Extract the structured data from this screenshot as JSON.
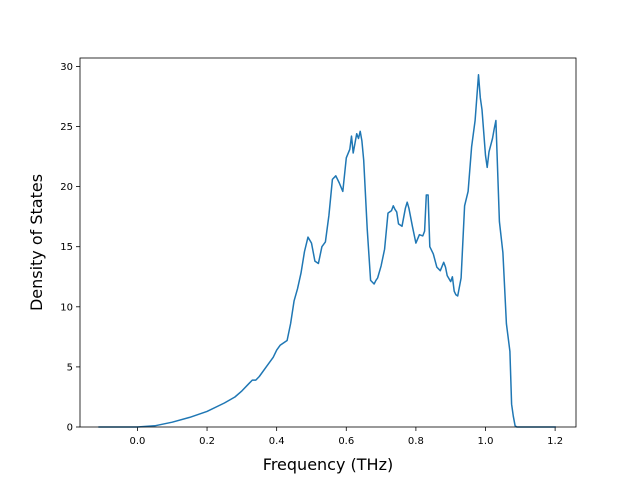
{
  "chart_data": {
    "type": "line",
    "title": "",
    "xlabel": "Frequency (THz)",
    "ylabel": "Density of States",
    "xlim": [
      -0.165,
      1.26
    ],
    "ylim": [
      0,
      30.7
    ],
    "xticks": [
      0.0,
      0.2,
      0.4,
      0.6,
      0.8,
      1.0,
      1.2
    ],
    "xtick_labels": [
      "0.0",
      "0.2",
      "0.4",
      "0.6",
      "0.8",
      "1.0",
      "1.2"
    ],
    "yticks": [
      0,
      5,
      10,
      15,
      20,
      25,
      30
    ],
    "ytick_labels": [
      "0",
      "5",
      "10",
      "15",
      "20",
      "25",
      "30"
    ],
    "grid": false,
    "legend": "none",
    "series": [
      {
        "color": "#1f77b4",
        "x": [
          -0.11,
          -0.05,
          0.0,
          0.05,
          0.1,
          0.15,
          0.2,
          0.25,
          0.28,
          0.3,
          0.32,
          0.33,
          0.34,
          0.35,
          0.37,
          0.39,
          0.4,
          0.41,
          0.43,
          0.44,
          0.45,
          0.46,
          0.47,
          0.48,
          0.49,
          0.5,
          0.51,
          0.52,
          0.53,
          0.54,
          0.55,
          0.56,
          0.57,
          0.58,
          0.59,
          0.6,
          0.61,
          0.615,
          0.62,
          0.63,
          0.635,
          0.64,
          0.645,
          0.65,
          0.66,
          0.67,
          0.68,
          0.685,
          0.69,
          0.7,
          0.71,
          0.72,
          0.73,
          0.735,
          0.74,
          0.745,
          0.75,
          0.76,
          0.77,
          0.775,
          0.78,
          0.79,
          0.8,
          0.81,
          0.82,
          0.825,
          0.83,
          0.835,
          0.84,
          0.85,
          0.86,
          0.87,
          0.88,
          0.885,
          0.89,
          0.9,
          0.905,
          0.91,
          0.915,
          0.92,
          0.93,
          0.94,
          0.95,
          0.96,
          0.97,
          0.98,
          0.985,
          0.99,
          1.0,
          1.005,
          1.01,
          1.02,
          1.025,
          1.03,
          1.04,
          1.05,
          1.06,
          1.07,
          1.075,
          1.08,
          1.085,
          1.09,
          1.1,
          1.15,
          1.2
        ],
        "y": [
          0.0,
          0.0,
          0.0,
          0.1,
          0.4,
          0.8,
          1.3,
          2.0,
          2.5,
          3.0,
          3.6,
          3.9,
          3.9,
          4.2,
          5.0,
          5.8,
          6.4,
          6.8,
          7.2,
          8.6,
          10.5,
          11.5,
          12.8,
          14.6,
          15.8,
          15.3,
          13.8,
          13.6,
          15.0,
          15.4,
          17.6,
          20.6,
          20.9,
          20.3,
          19.6,
          22.4,
          23.1,
          24.2,
          22.8,
          24.4,
          24.0,
          24.6,
          23.8,
          22.2,
          16.5,
          12.2,
          11.9,
          12.2,
          12.4,
          13.4,
          14.8,
          17.8,
          18.0,
          18.4,
          18.1,
          17.9,
          16.9,
          16.7,
          18.2,
          18.7,
          18.2,
          16.7,
          15.3,
          16.0,
          15.9,
          16.3,
          19.3,
          19.3,
          15.0,
          14.4,
          13.3,
          13.0,
          13.7,
          13.3,
          12.6,
          12.1,
          12.5,
          11.3,
          11.0,
          10.9,
          12.4,
          18.4,
          19.6,
          23.3,
          25.5,
          29.3,
          27.4,
          26.4,
          22.6,
          21.6,
          22.9,
          24.0,
          24.8,
          25.5,
          17.1,
          14.5,
          8.6,
          6.3,
          1.9,
          0.9,
          0.1,
          0.0,
          0.0,
          0.0,
          0.0
        ]
      }
    ]
  }
}
